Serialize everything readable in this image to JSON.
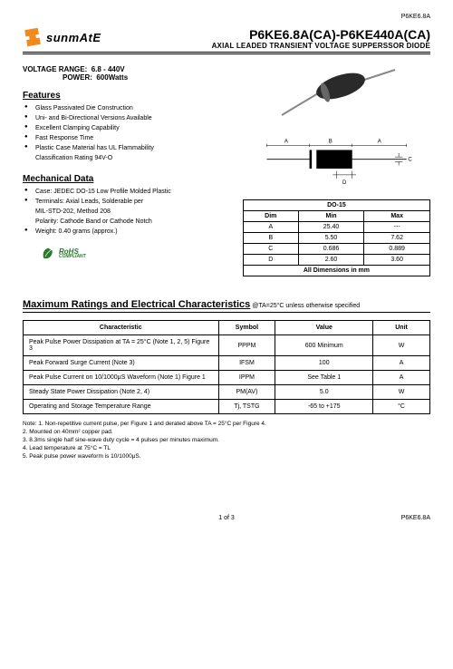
{
  "header": {
    "topRightPart": "P6KE6.8A",
    "brand": "sunmAtE",
    "partTitle": "P6KE6.8A(CA)-P6KE440A(CA)",
    "subTitle": "AXIAL LEADED TRANSIENT VOLTAGE SUPPERSSOR DIODE"
  },
  "specs": {
    "voltageLabel": "VOLTAGE  RANGE:",
    "voltageValue": "6.8 - 440V",
    "powerLabel": "POWER:",
    "powerValue": "600Watts"
  },
  "features": {
    "heading": "Features",
    "items": [
      "Glass Passivated Die Construction",
      "Uni- and Bi-Directional Versions Available",
      "Excellent Clamping Capability",
      "Fast Response Time",
      "Plastic Case Material has UL Flammability",
      "Classification Rating 94V-O"
    ]
  },
  "mechanical": {
    "heading": "Mechanical Data",
    "items": [
      "Case: JEDEC DO-15 Low Profile Molded Plastic",
      "Terminals: Axial Leads, Solderable per",
      "MIL-STD-202, Method 208",
      "Polarity: Cathode Band or Cathode Notch",
      "Weight: 0.40 grams (approx.)"
    ],
    "bulletIdx": [
      0,
      1,
      4
    ]
  },
  "rohs": {
    "line1": "RoHS",
    "line2": "COMPLIANT"
  },
  "dimTable": {
    "title": "DO-15",
    "cols": [
      "Dim",
      "Min",
      "Max"
    ],
    "rows": [
      [
        "A",
        "25.40",
        "---"
      ],
      [
        "B",
        "5.50",
        "7.62"
      ],
      [
        "C",
        "0.686",
        "0.889"
      ],
      [
        "D",
        "2.60",
        "3.60"
      ]
    ],
    "footer": "All Dimensions in mm"
  },
  "dimLabels": {
    "A1": "A",
    "B": "B",
    "A2": "A",
    "C": "C",
    "D": "D"
  },
  "maxRatings": {
    "heading": "Maximum Ratings and Electrical Characteristics",
    "condition": " @TA=25°C unless otherwise specified",
    "cols": [
      "Characteristic",
      "Symbol",
      "Value",
      "Unit"
    ],
    "rows": [
      [
        "Peak Pulse Power Dissipation at TA = 25°C (Note 1, 2, 5) Figure 3",
        "PPPM",
        "600 Minimum",
        "W"
      ],
      [
        "Peak Forward Surge Current (Note 3)",
        "IFSM",
        "100",
        "A"
      ],
      [
        "Peak Pulse Current on 10/1000μS Waveform (Note 1) Figure 1",
        "IPPM",
        "See Table 1",
        "A"
      ],
      [
        "Steady State Power Dissipation (Note 2, 4)",
        "PM(AV)",
        "5.0",
        "W"
      ],
      [
        "Operating and Storage Temperature Range",
        "Tj, TSTG",
        "-65 to +175",
        "°C"
      ]
    ]
  },
  "notes": {
    "label": "Note:",
    "items": [
      "1. Non-repetitive current pulse, per Figure 1 and derated above TA = 25°C per Figure 4.",
      "2. Mounted on 40mm² copper pad.",
      "3. 8.3ms single half sine-wave duty cycle = 4 pulses per minutes maximum.",
      "4. Lead temperature at 75°C = TL",
      "5. Peak pulse power waveform is 10/1000μS."
    ]
  },
  "footer": {
    "page": "1 of 3",
    "part": "P6KE6.8A"
  },
  "colors": {
    "logoOrange": "#f08a1f",
    "rohsGreen": "#2a7a2a",
    "diodeBody": "#3a3a3a"
  }
}
